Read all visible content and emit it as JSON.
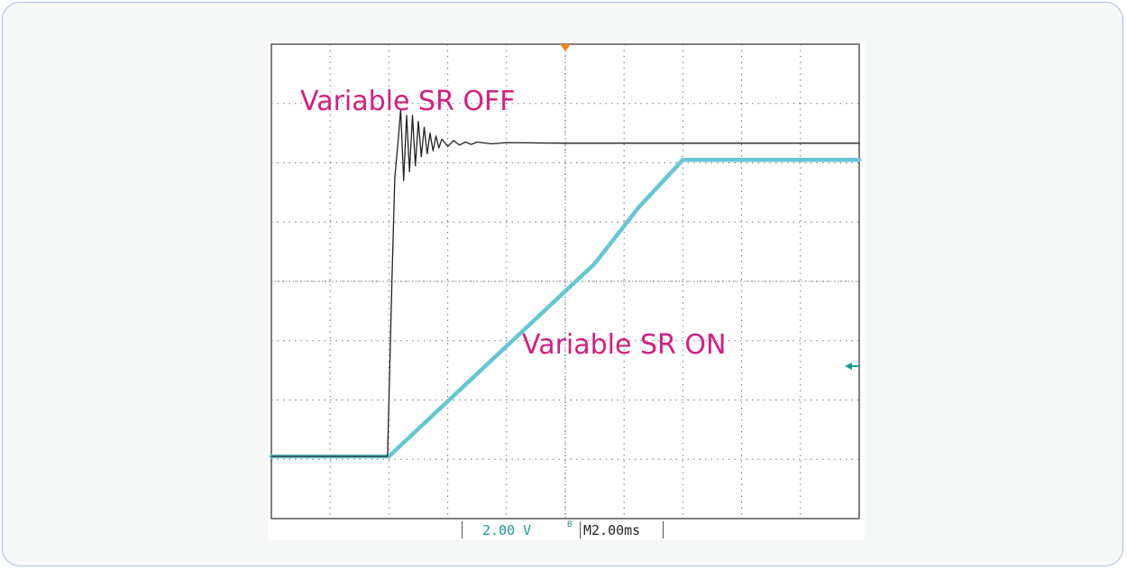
{
  "chart_data": {
    "type": "line",
    "title": "",
    "xlabel": "",
    "ylabel": "",
    "grid": true,
    "x_divisions": 10,
    "y_divisions": 8,
    "time_per_div_label": "2.00ms",
    "time_prefix": "M",
    "volts_per_div_label": "2.00 V",
    "xlim_ms": [
      -10,
      10
    ],
    "ylim_v": [
      -8,
      8
    ],
    "series": [
      {
        "color": "#222222",
        "x_ms": [
          -10,
          -6.05,
          -6.0,
          -5.9,
          -5.8,
          -5.7,
          -5.6,
          -5.5,
          -5.4,
          -5.3,
          -5.2,
          -5.1,
          -5.0,
          -4.9,
          -4.8,
          -4.7,
          -4.6,
          -4.5,
          -4.4,
          -4.3,
          -4.2,
          -4.0,
          -3.8,
          -3.6,
          -3.4,
          -3.2,
          -3.0,
          -2.5,
          -2.0,
          0,
          4,
          10
        ],
        "y_v": [
          -5.9,
          -5.9,
          -4.0,
          0.0,
          3.5,
          4.6,
          5.8,
          3.4,
          5.6,
          3.7,
          5.6,
          3.9,
          5.4,
          4.2,
          5.2,
          4.3,
          5.0,
          4.4,
          4.9,
          4.5,
          4.8,
          4.55,
          4.75,
          4.6,
          4.7,
          4.62,
          4.7,
          4.64,
          4.68,
          4.66,
          4.66,
          4.66
        ]
      },
      {
        "color": "#66c5d6",
        "x_ms": [
          -10,
          -6.0,
          1.0,
          2.5,
          4.0,
          10
        ],
        "y_v": [
          -5.9,
          -5.9,
          0.6,
          2.5,
          4.1,
          4.1
        ]
      }
    ],
    "annotations": [
      {
        "text": "Variable SR OFF"
      },
      {
        "text": "Variable SR ON"
      }
    ]
  }
}
